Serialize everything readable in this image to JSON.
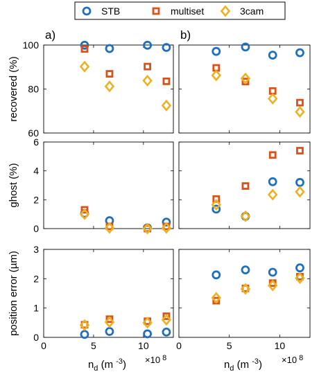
{
  "colors": {
    "STB": "#1f6fc0",
    "multiset": "#d95319",
    "3cam": "#edb120"
  },
  "chart_data": {
    "type": "scatter",
    "legend": {
      "placement": "top-center",
      "entries": [
        {
          "name": "STB",
          "marker": "circle"
        },
        {
          "name": "multiset",
          "marker": "square"
        },
        {
          "name": "3cam",
          "marker": "diamond"
        }
      ]
    },
    "columns": [
      {
        "label": "a)",
        "xlabel": "n_d (m^-3)",
        "x_multiplier": "×10^8"
      },
      {
        "label": "b)",
        "xlabel": "n_d (m^-3)",
        "x_multiplier": "×10^8"
      }
    ],
    "xlim": [
      0,
      13
    ],
    "xticks": [
      0,
      5,
      10
    ],
    "grid": false,
    "rows": [
      {
        "ylabel": "recovered (%)",
        "ylim": [
          60,
          100
        ],
        "yticks": [
          60,
          80,
          100
        ]
      },
      {
        "ylabel": "ghost (%)",
        "ylim": [
          0,
          6
        ],
        "yticks": [
          0,
          2,
          4,
          6
        ]
      },
      {
        "ylabel": "position error (µm)",
        "ylim": [
          0,
          3
        ],
        "yticks": [
          0,
          1,
          2,
          3
        ]
      }
    ],
    "panels": [
      {
        "row": 0,
        "col": 0,
        "series": [
          {
            "name": "STB",
            "x": [
              4.1,
              6.6,
              10.4,
              12.3
            ],
            "y": [
              99.9,
              98.4,
              99.9,
              98.9
            ]
          },
          {
            "name": "multiset",
            "x": [
              4.1,
              6.6,
              10.4,
              12.3
            ],
            "y": [
              98.2,
              86.9,
              90.2,
              83.5
            ]
          },
          {
            "name": "3cam",
            "x": [
              4.1,
              6.6,
              10.4,
              12.3
            ],
            "y": [
              90.2,
              81.2,
              83.8,
              72.5
            ]
          }
        ]
      },
      {
        "row": 1,
        "col": 0,
        "series": [
          {
            "name": "STB",
            "x": [
              4.1,
              6.6,
              10.4,
              12.3
            ],
            "y": [
              1.05,
              0.55,
              0.05,
              0.45
            ]
          },
          {
            "name": "multiset",
            "x": [
              4.1,
              6.6,
              10.4,
              12.3
            ],
            "y": [
              1.3,
              0.15,
              0.0,
              0.15
            ]
          },
          {
            "name": "3cam",
            "x": [
              4.1,
              6.6,
              10.4,
              12.3
            ],
            "y": [
              1.0,
              0.05,
              0.0,
              0.05
            ]
          }
        ]
      },
      {
        "row": 2,
        "col": 0,
        "series": [
          {
            "name": "STB",
            "x": [
              4.1,
              6.6,
              10.4,
              12.3
            ],
            "y": [
              0.1,
              0.2,
              0.12,
              0.18
            ]
          },
          {
            "name": "multiset",
            "x": [
              4.1,
              6.6,
              10.4,
              12.3
            ],
            "y": [
              0.43,
              0.62,
              0.55,
              0.72
            ]
          },
          {
            "name": "3cam",
            "x": [
              4.1,
              6.6,
              10.4,
              12.3
            ],
            "y": [
              0.42,
              0.52,
              0.5,
              0.6
            ]
          }
        ]
      },
      {
        "row": 0,
        "col": 1,
        "series": [
          {
            "name": "STB",
            "x": [
              3.7,
              6.6,
              9.3,
              12.0
            ],
            "y": [
              97.1,
              99.1,
              95.4,
              96.5
            ]
          },
          {
            "name": "multiset",
            "x": [
              3.7,
              6.6,
              9.3,
              12.0
            ],
            "y": [
              89.6,
              83.4,
              79.1,
              73.8
            ]
          },
          {
            "name": "3cam",
            "x": [
              3.7,
              6.6,
              9.3,
              12.0
            ],
            "y": [
              86.2,
              84.8,
              75.6,
              69.6
            ]
          }
        ]
      },
      {
        "row": 1,
        "col": 1,
        "series": [
          {
            "name": "STB",
            "x": [
              3.7,
              6.6,
              9.3,
              12.0
            ],
            "y": [
              1.35,
              0.85,
              3.25,
              3.2
            ]
          },
          {
            "name": "multiset",
            "x": [
              3.7,
              6.6,
              9.3,
              12.0
            ],
            "y": [
              2.05,
              2.95,
              5.1,
              5.4
            ]
          },
          {
            "name": "3cam",
            "x": [
              3.7,
              6.6,
              9.3,
              12.0
            ],
            "y": [
              1.65,
              0.85,
              2.35,
              2.55
            ]
          }
        ]
      },
      {
        "row": 2,
        "col": 1,
        "series": [
          {
            "name": "STB",
            "x": [
              3.7,
              6.6,
              9.3,
              12.0
            ],
            "y": [
              2.13,
              2.3,
              2.22,
              2.37
            ]
          },
          {
            "name": "multiset",
            "x": [
              3.7,
              6.6,
              9.3,
              12.0
            ],
            "y": [
              1.25,
              1.67,
              1.85,
              2.07
            ]
          },
          {
            "name": "3cam",
            "x": [
              3.7,
              6.6,
              9.3,
              12.0
            ],
            "y": [
              1.35,
              1.65,
              1.77,
              2.02
            ]
          }
        ]
      }
    ]
  }
}
